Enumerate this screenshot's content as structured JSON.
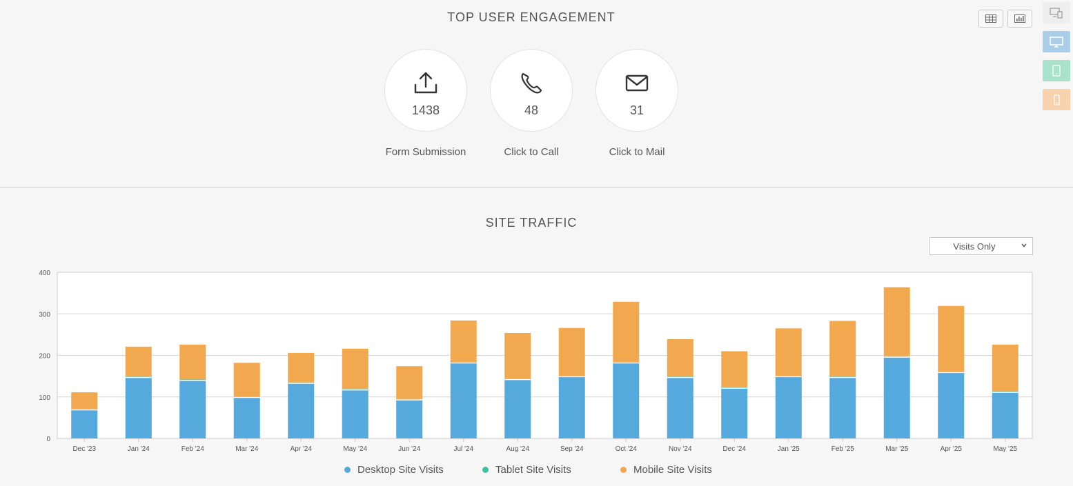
{
  "engagement": {
    "title": "TOP USER ENGAGEMENT",
    "items": [
      {
        "icon": "upload-icon",
        "value": "1438",
        "label": "Form Submission"
      },
      {
        "icon": "phone-icon",
        "value": "48",
        "label": "Click to Call"
      },
      {
        "icon": "mail-icon",
        "value": "31",
        "label": "Click to Mail"
      }
    ]
  },
  "toolbar": {
    "view_buttons": [
      {
        "icon": "table-icon"
      },
      {
        "icon": "bar-chart-icon"
      }
    ],
    "device_buttons": [
      {
        "icon": "all-devices-icon",
        "color": "#eeeeee"
      },
      {
        "icon": "desktop-icon",
        "color": "#aacdea"
      },
      {
        "icon": "tablet-icon",
        "color": "#a8e2cc"
      },
      {
        "icon": "mobile-icon",
        "color": "#f8d2ad"
      }
    ]
  },
  "traffic": {
    "title": "SITE TRAFFIC",
    "filter": {
      "selected": "Visits Only"
    }
  },
  "chart_data": {
    "type": "bar",
    "stacked": true,
    "categories": [
      "Dec '23",
      "Jan '24",
      "Feb '24",
      "Mar '24",
      "Apr '24",
      "May '24",
      "Jun '24",
      "Jul '24",
      "Aug '24",
      "Sep '24",
      "Oct '24",
      "Nov '24",
      "Dec '24",
      "Jan '25",
      "Feb '25",
      "Mar '25",
      "Apr '25",
      "May '25"
    ],
    "series": [
      {
        "name": "Desktop Site Visits",
        "color": "#55a9dc",
        "values": [
          70,
          148,
          141,
          100,
          134,
          118,
          94,
          183,
          143,
          150,
          183,
          148,
          122,
          150,
          148,
          197,
          160,
          112
        ]
      },
      {
        "name": "Tablet Site Visits",
        "color": "#3ec1a0",
        "values": [
          1,
          1,
          1,
          1,
          1,
          1,
          1,
          1,
          1,
          1,
          1,
          1,
          1,
          1,
          1,
          1,
          1,
          1
        ]
      },
      {
        "name": "Mobile Site Visits",
        "color": "#f2a84e",
        "values": [
          40,
          72,
          84,
          81,
          71,
          97,
          79,
          100,
          110,
          115,
          145,
          90,
          87,
          114,
          134,
          166,
          158,
          113
        ]
      }
    ],
    "ylim": [
      0,
      400
    ],
    "yticks": [
      "0",
      "100",
      "200",
      "300",
      "400"
    ],
    "grid": true,
    "legend": "bottom"
  }
}
